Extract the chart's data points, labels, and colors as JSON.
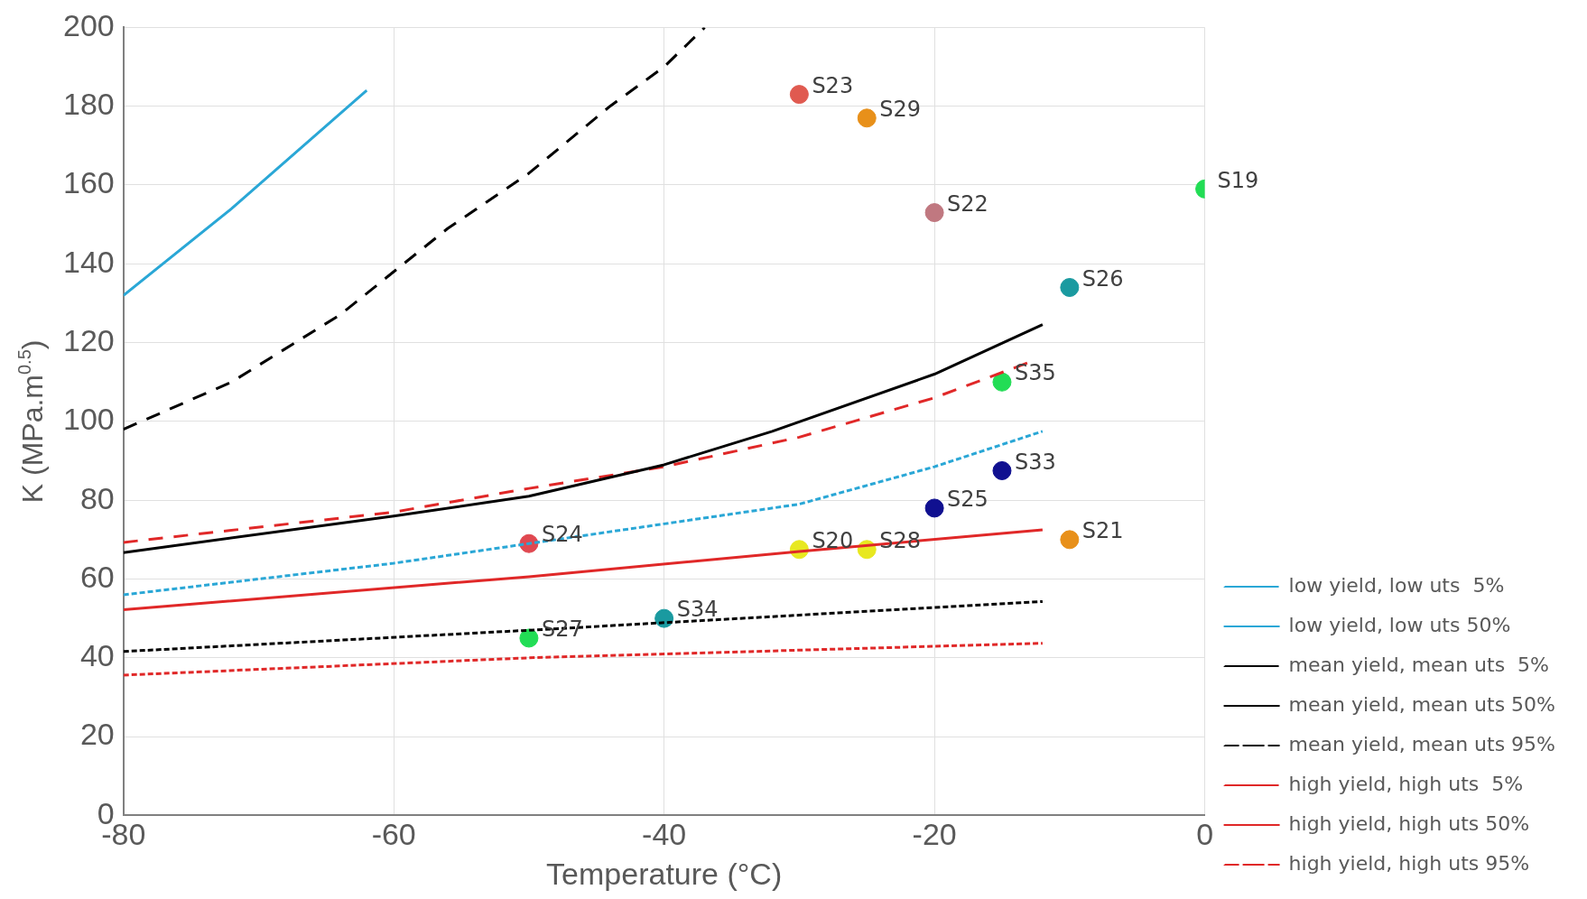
{
  "chart_data": {
    "type": "line",
    "xlabel": "Temperature (°C)",
    "ylabel": "K (MPa.m$^{0.5}$)",
    "xlim": [
      -80,
      0
    ],
    "xticks": [
      -80,
      -60,
      -40,
      -20,
      0
    ],
    "ylim": [
      0,
      200
    ],
    "yticks": [
      0,
      20,
      40,
      60,
      80,
      100,
      120,
      140,
      160,
      180,
      200
    ],
    "grid": true,
    "legend": "right",
    "series": [
      {
        "name": "low yield, low uts  5%",
        "color": "#2aa7d6",
        "line_style": "dotted",
        "marker": "none",
        "x": [
          -80,
          -60,
          -50,
          -40,
          -30,
          -20,
          -12
        ],
        "values": [
          56,
          64,
          69,
          74,
          79,
          88.5,
          97.5
        ]
      },
      {
        "name": "low yield, low uts 50%",
        "color": "#2aa7d6",
        "line_style": "solid",
        "marker": "none",
        "x": [
          -80,
          -72,
          -62
        ],
        "values": [
          132,
          154,
          184
        ]
      },
      {
        "name": "mean yield, mean uts  5%",
        "color": "#000000",
        "line_style": "dotted",
        "marker": "none",
        "x": [
          -80,
          -50,
          -12
        ],
        "values": [
          41.6,
          47,
          54.3
        ]
      },
      {
        "name": "mean yield, mean uts 50%",
        "color": "#000000",
        "line_style": "solid",
        "marker": "none",
        "x": [
          -80,
          -60,
          -50,
          -40,
          -32,
          -20,
          -12
        ],
        "values": [
          66.7,
          76,
          81,
          89,
          97.5,
          112,
          124.6
        ]
      },
      {
        "name": "mean yield, mean uts 95%",
        "color": "#000000",
        "line_style": "dashed",
        "marker": "none",
        "x": [
          -80,
          -72,
          -64,
          -56,
          -50,
          -44,
          -40,
          -37
        ],
        "values": [
          98,
          110,
          127,
          149,
          163,
          180,
          190,
          200
        ]
      },
      {
        "name": "high yield, high uts  5%",
        "color": "#e02828",
        "line_style": "dotted",
        "marker": "none",
        "x": [
          -80,
          -50,
          -12
        ],
        "values": [
          35.6,
          40,
          43.7
        ]
      },
      {
        "name": "high yield, high uts 50%",
        "color": "#e02828",
        "line_style": "solid",
        "marker": "none",
        "x": [
          -80,
          -50,
          -30,
          -12
        ],
        "values": [
          52.2,
          60.6,
          67,
          72.5
        ]
      },
      {
        "name": "high yield, high uts 95%",
        "color": "#e02828",
        "line_style": "dashed",
        "marker": "none",
        "x": [
          -80,
          -60,
          -50,
          -40,
          -30,
          -20,
          -13
        ],
        "values": [
          69.3,
          77,
          83,
          88.5,
          96,
          106,
          115
        ]
      },
      {
        "name": "S23",
        "type": "scatter",
        "color": "#e05a50",
        "marker": "circle",
        "x": [
          -30
        ],
        "values": [
          183
        ]
      },
      {
        "name": "S29",
        "type": "scatter",
        "color": "#e8901a",
        "marker": "circle",
        "x": [
          -25
        ],
        "values": [
          177
        ]
      },
      {
        "name": "S22",
        "type": "scatter",
        "color": "#c07880",
        "marker": "circle",
        "x": [
          -20
        ],
        "values": [
          153
        ]
      },
      {
        "name": "S19",
        "type": "scatter",
        "color": "#22dd55",
        "marker": "circle",
        "x": [
          0
        ],
        "values": [
          159
        ]
      },
      {
        "name": "S26",
        "type": "scatter",
        "color": "#1a9aa0",
        "marker": "circle",
        "x": [
          -10
        ],
        "values": [
          134
        ]
      },
      {
        "name": "S35",
        "type": "scatter",
        "color": "#22dd55",
        "marker": "circle",
        "x": [
          -15
        ],
        "values": [
          110
        ]
      },
      {
        "name": "S33",
        "type": "scatter",
        "color": "#101090",
        "marker": "circle",
        "x": [
          -15
        ],
        "values": [
          87.5
        ]
      },
      {
        "name": "S25",
        "type": "scatter",
        "color": "#101090",
        "marker": "circle",
        "x": [
          -20
        ],
        "values": [
          78
        ]
      },
      {
        "name": "S20",
        "type": "scatter",
        "color": "#e8e820",
        "marker": "circle",
        "x": [
          -30
        ],
        "values": [
          67.5
        ]
      },
      {
        "name": "S28",
        "type": "scatter",
        "color": "#e8e820",
        "marker": "circle",
        "x": [
          -25
        ],
        "values": [
          67.5
        ]
      },
      {
        "name": "S21",
        "type": "scatter",
        "color": "#e8901a",
        "marker": "circle",
        "x": [
          -10
        ],
        "values": [
          70
        ]
      },
      {
        "name": "S24",
        "type": "scatter",
        "color": "#e04850",
        "marker": "circle",
        "x": [
          -50
        ],
        "values": [
          69
        ]
      },
      {
        "name": "S27",
        "type": "scatter",
        "color": "#22dd55",
        "marker": "circle",
        "x": [
          -50
        ],
        "values": [
          45
        ]
      },
      {
        "name": "S34",
        "type": "scatter",
        "color": "#1a9aa0",
        "marker": "circle",
        "x": [
          -40
        ],
        "values": [
          50
        ]
      }
    ]
  }
}
